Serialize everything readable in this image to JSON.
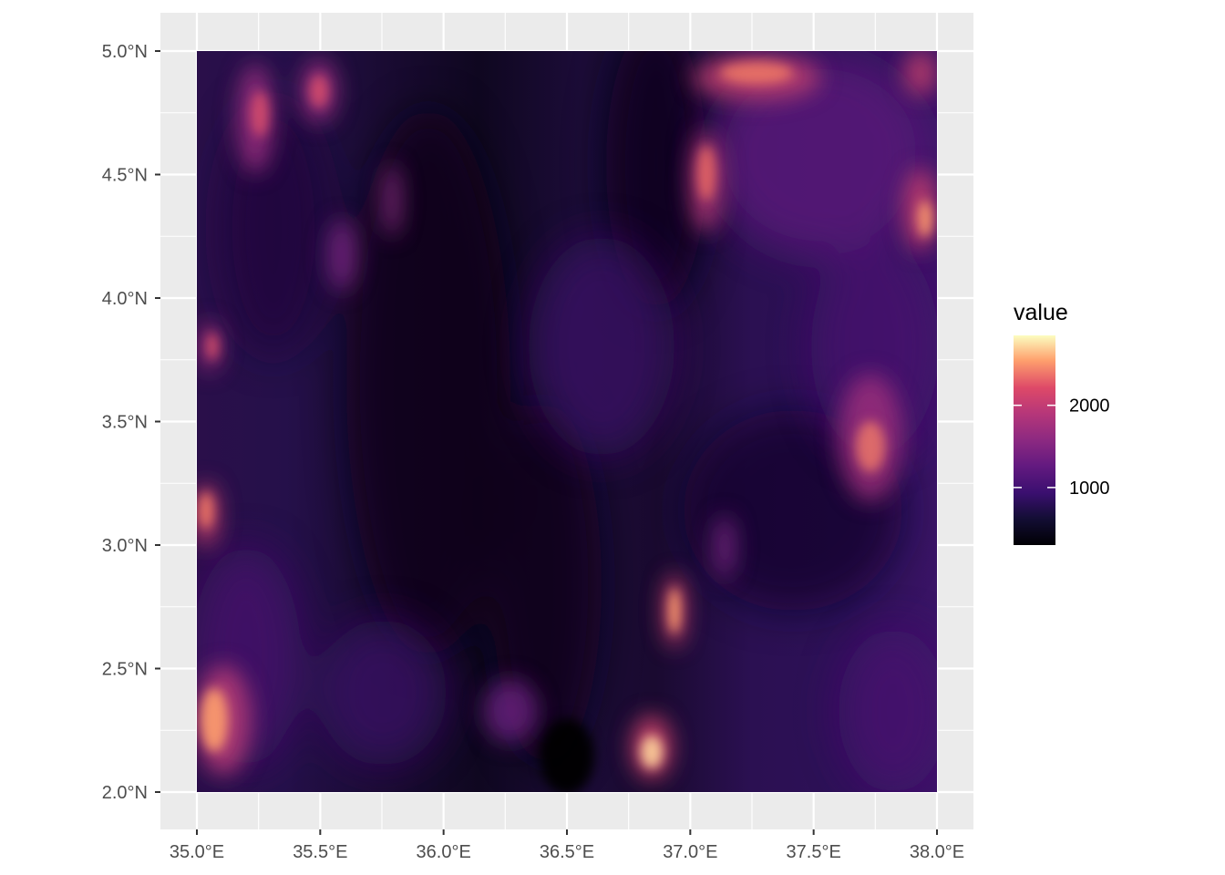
{
  "chart_data": {
    "type": "heatmap",
    "title": "",
    "xlabel": "",
    "ylabel": "",
    "x_ticks": [
      "35.0°E",
      "35.5°E",
      "36.0°E",
      "36.5°E",
      "37.0°E",
      "37.5°E",
      "38.0°E"
    ],
    "y_ticks": [
      "5.0°N",
      "4.5°N",
      "4.0°N",
      "3.5°N",
      "3.0°N",
      "2.5°N",
      "2.0°N"
    ],
    "xlim": [
      35.0,
      38.0
    ],
    "ylim": [
      2.0,
      5.0
    ],
    "grid": true,
    "legend": {
      "title": "value",
      "placement": "right",
      "labels": [
        "2000",
        "1000"
      ],
      "breaks": [
        2000,
        1000
      ],
      "range": [
        300,
        2850
      ],
      "palette": "magma"
    },
    "colors": {
      "panel_background": "#ebebeb",
      "gridline": "#ffffff",
      "low": "#000004",
      "high": "#fcfdbf"
    }
  }
}
